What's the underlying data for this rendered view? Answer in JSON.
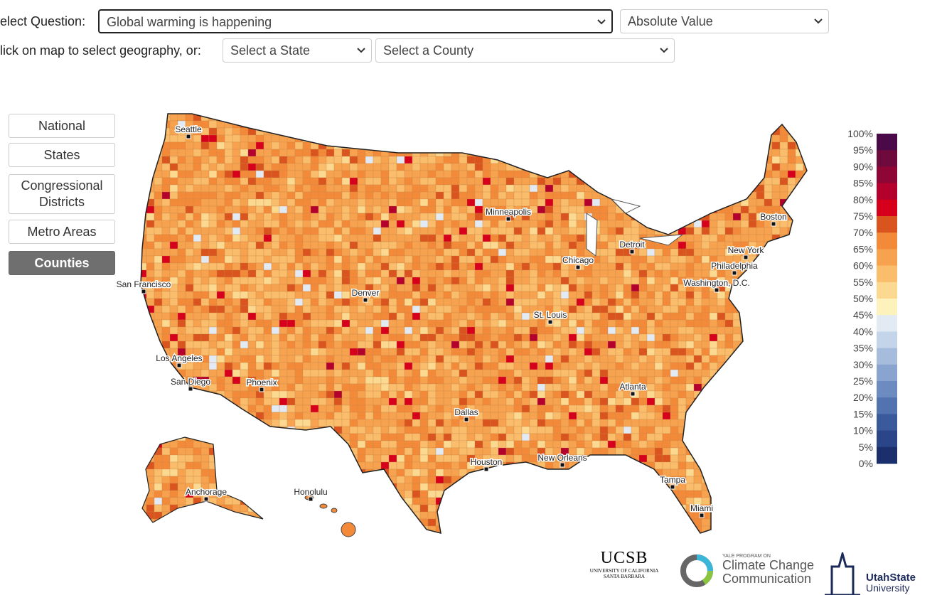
{
  "controls": {
    "question_label": "elect Question:",
    "question": "Global warming is happening",
    "measure": "Absolute Value",
    "geo_label": "lick on map to select geography, or:",
    "state": "Select a State",
    "county": "Select a County"
  },
  "buttons": [
    "National",
    "States",
    "Congressional Districts",
    "Metro Areas",
    "Counties"
  ],
  "legend": {
    "labels": [
      "100%",
      "95%",
      "90%",
      "85%",
      "80%",
      "75%",
      "70%",
      "65%",
      "60%",
      "55%",
      "50%",
      "45%",
      "40%",
      "35%",
      "30%",
      "25%",
      "20%",
      "15%",
      "10%",
      "5%",
      "0%"
    ],
    "colors": [
      "#4a0a4a",
      "#6e0a3c",
      "#8e0636",
      "#b3002c",
      "#d6001c",
      "#d9541e",
      "#f28a3a",
      "#f6a24e",
      "#f9bd6c",
      "#fbd991",
      "#fdf2bc",
      "#e2eaf3",
      "#c4d4e9",
      "#a6bcdc",
      "#89a4ce",
      "#6c8bc0",
      "#5272b0",
      "#3b5a9c",
      "#2a4688",
      "#1a2f6c"
    ]
  },
  "cities": [
    "Seattle",
    "San Francisco",
    "Los Angeles",
    "San Diego",
    "Phoenix",
    "Denver",
    "Dallas",
    "Houston",
    "New Orleans",
    "Atlanta",
    "Tampa",
    "Miami",
    "Washington, D.C.",
    "Philadelphia",
    "New York",
    "Boston",
    "Detroit",
    "Chicago",
    "St. Louis",
    "Minneapolis",
    "Anchorage",
    "Honolulu"
  ],
  "logos": {
    "ucsb": "UCSB",
    "ucsb_sub": "UNIVERSITY OF CALIFORNIA SANTA BARBARA",
    "yale_top": "YALE PROGRAM ON",
    "yale_1": "Climate Change",
    "yale_2": "Communication",
    "usu_1": "UtahState",
    "usu_2": "University"
  }
}
